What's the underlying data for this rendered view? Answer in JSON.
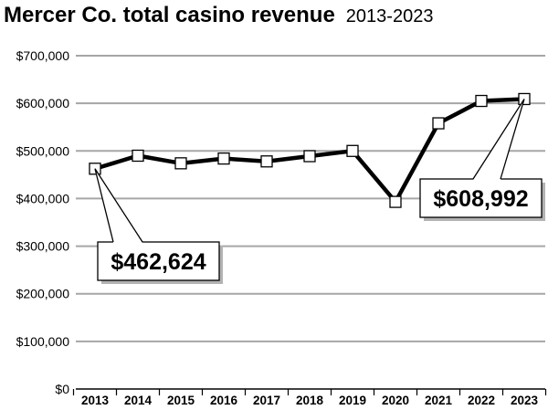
{
  "chart_data": {
    "type": "line",
    "title": "Mercer Co. total casino revenue",
    "subtitle": "2013-2023",
    "x": [
      "2013",
      "2014",
      "2015",
      "2016",
      "2017",
      "2018",
      "2019",
      "2020",
      "2021",
      "2022",
      "2023"
    ],
    "series": [
      {
        "values": [
          462624,
          490000,
          474000,
          484000,
          478000,
          489000,
          500000,
          393000,
          558000,
          605000,
          608992
        ]
      }
    ],
    "ylim": [
      0,
      700000
    ],
    "yticks": [
      0,
      100000,
      200000,
      300000,
      400000,
      500000,
      600000,
      700000
    ],
    "ytick_labels": [
      "$0",
      "$100,000",
      "$200,000",
      "$300,000",
      "$400,000",
      "$500,000",
      "$600,000",
      "$700,000"
    ],
    "grid": true,
    "marker": "square",
    "annotations": [
      {
        "x": "2013",
        "text": "$462,624"
      },
      {
        "x": "2023",
        "text": "$608,992"
      }
    ]
  }
}
